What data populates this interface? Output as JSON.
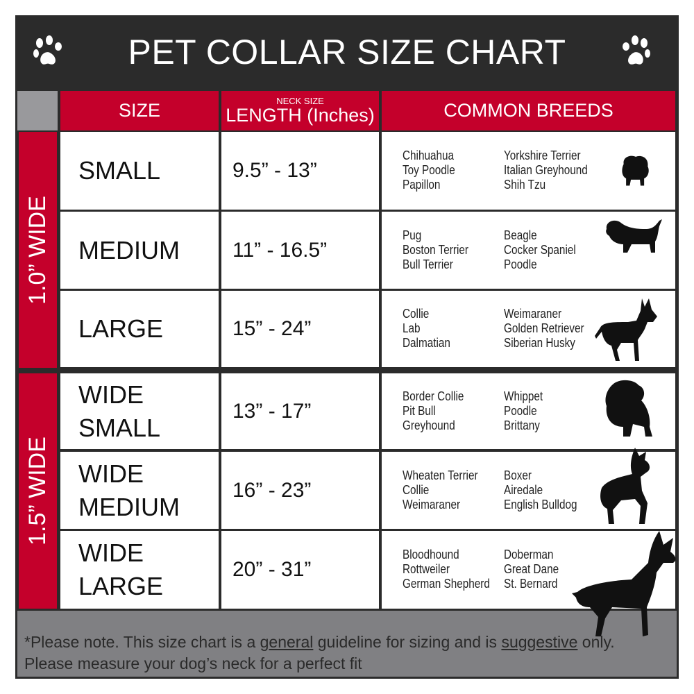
{
  "title": "PET COLLAR SIZE CHART",
  "headers": {
    "size": "SIZE",
    "length_small": "NECK SIZE",
    "length": "LENGTH (Inches)",
    "breeds": "COMMON BREEDS"
  },
  "groups": [
    {
      "label": "1.0” WIDE"
    },
    {
      "label": "1.5” WIDE"
    }
  ],
  "rows": [
    {
      "size": "SMALL",
      "length": "9.5” - 13”",
      "breeds_a": [
        "Chihuahua",
        "Toy Poodle",
        "Papillon"
      ],
      "breeds_b": [
        "Yorkshire Terrier",
        "Italian Greyhound",
        "Shih Tzu"
      ]
    },
    {
      "size": "MEDIUM",
      "length": "11” - 16.5”",
      "breeds_a": [
        "Pug",
        "Boston Terrier",
        "Bull Terrier"
      ],
      "breeds_b": [
        "Beagle",
        "Cocker Spaniel",
        "Poodle"
      ]
    },
    {
      "size": "LARGE",
      "length": "15” - 24”",
      "breeds_a": [
        "Collie",
        "Lab",
        "Dalmatian"
      ],
      "breeds_b": [
        "Weimaraner",
        "Golden Retriever",
        "Siberian Husky"
      ]
    },
    {
      "size": "WIDE SMALL",
      "length": "13” - 17”",
      "breeds_a": [
        "Border Collie",
        "Pit Bull",
        "Greyhound"
      ],
      "breeds_b": [
        "Whippet",
        "Poodle",
        "Brittany"
      ]
    },
    {
      "size": "WIDE MEDIUM",
      "length": "16” - 23”",
      "breeds_a": [
        "Wheaten Terrier",
        "Collie",
        "Weimaraner"
      ],
      "breeds_b": [
        "Boxer",
        "Airedale",
        "English Bulldog"
      ]
    },
    {
      "size": "WIDE LARGE",
      "length": "20” - 31”",
      "breeds_a": [
        "Bloodhound",
        "Rottweiler",
        "German Shepherd"
      ],
      "breeds_b": [
        "Doberman",
        "Great Dane",
        "St. Bernard"
      ]
    }
  ],
  "footer": {
    "p1": "*Please note. This size chart is a",
    "u1": "general",
    "p2": "guideline for sizing and is",
    "u2": "suggestive",
    "p3": "only.",
    "line2": "Please measure your dog’s neck for a perfect fit"
  },
  "colors": {
    "red": "#c4002b",
    "dark": "#2b2b2b",
    "grey": "#808083"
  },
  "icons": [
    "paw-icon",
    "dog-silhouette"
  ]
}
